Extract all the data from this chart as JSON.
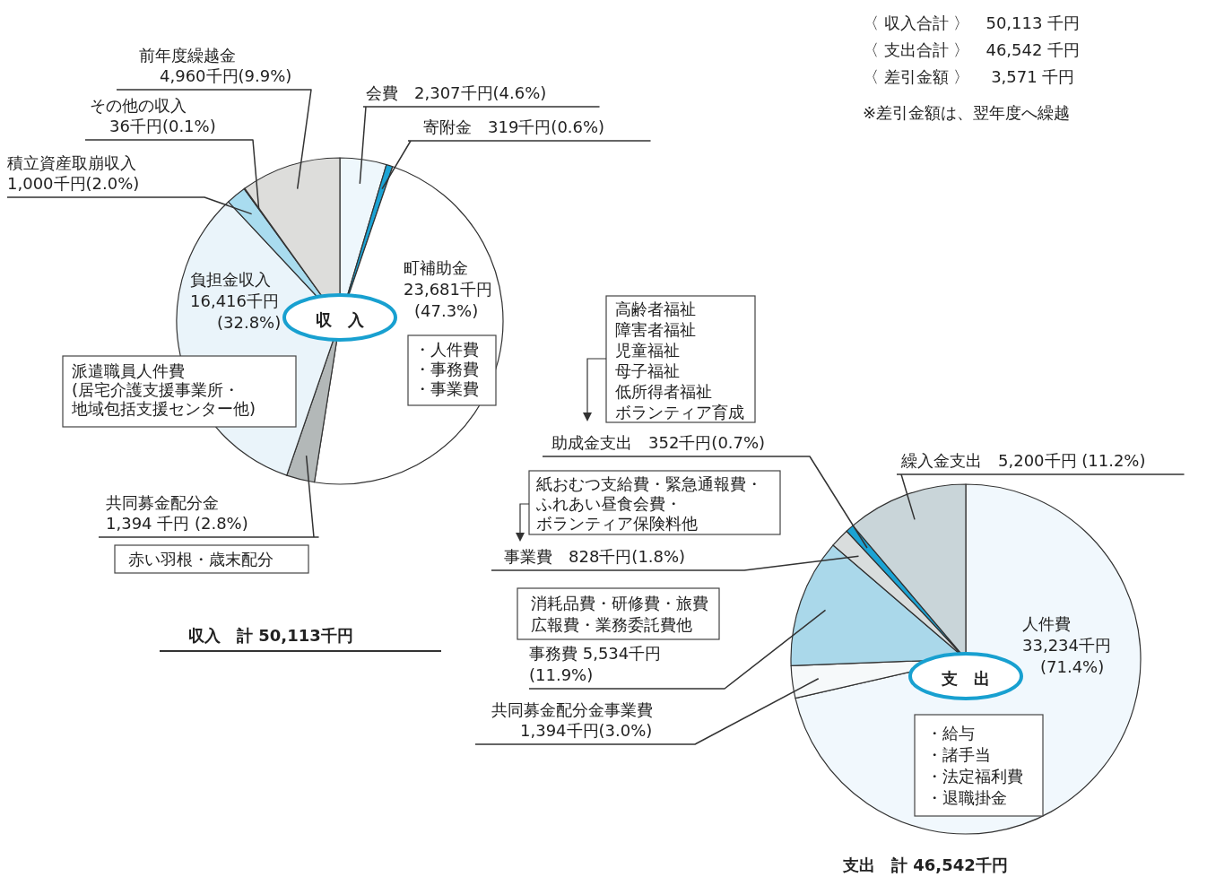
{
  "chart_data": [
    {
      "type": "pie",
      "title": "収　入",
      "categories": [
        "会費",
        "寄附金",
        "町補助金",
        "共同募金配分金",
        "負担金収入",
        "積立資産取崩収入",
        "その他の収入",
        "前年度繰越金"
      ],
      "values": [
        2307,
        319,
        23681,
        1394,
        16416,
        1000,
        36,
        4960
      ],
      "value_labels": [
        "2,307千円(4.6%)",
        "319千円(0.6%)",
        "23,681千円(47.3%)",
        "1,394 千円 (2.8%)",
        "16,416千円(32.8%)",
        "1,000千円(2.0%)",
        "36千円(0.1%)",
        "4,960千円(9.9%)"
      ],
      "colors": [
        "#eef7fc",
        "#1ba3d4",
        "#ffffff",
        "#b3b8b8",
        "#eaf4fa",
        "#a9dcef",
        "#cfe9f5",
        "#dddddb"
      ],
      "annotations": [
        "・人件費",
        "・事務費",
        "・事業費",
        "派遣職員人件費",
        "(居宅介護支援事業所・",
        "地域包括支援センター他)",
        "赤い羽根・歳末配分",
        "収入　計 50,113千円"
      ]
    },
    {
      "type": "other",
      "annotations": [
        "〈 収入合計 〉　50,113 千円",
        "〈 支出合計 〉　46,542 千円",
        "〈 差引金額 〉　 3,571 千円",
        "※差引金額は、翌年度へ繰越"
      ]
    },
    {
      "type": "pie",
      "title": "支　出",
      "categories": [
        "人件費",
        "共同募金配分金事業費",
        "事務費",
        "事業費",
        "助成金支出",
        "繰入金支出"
      ],
      "values": [
        33234,
        1394,
        5534,
        828,
        352,
        5200
      ],
      "value_labels": [
        "33,234千円(71.4%)",
        "1,394千円(3.0%)",
        "5,534千円(11.9%)",
        "828千円(1.8%)",
        "352千円(0.7%)",
        "5,200千円 (11.2%)"
      ],
      "colors": [
        "#f1f8fd",
        "#f6f9fa",
        "#aad8ea",
        "#d9dddd",
        "#1ba3d4",
        "#c9d5d9"
      ],
      "annotations": [
        "高齢者福祉",
        "障害者福祉",
        "児童福祉",
        "母子福祉",
        "低所得者福祉",
        "ボランティア育成",
        "紙おむつ支給費・緊急通報費・",
        "ふれあい昼食会費・",
        "ボランティア保険料他",
        "消耗品費・研修費・旅費",
        "広報費・業務委託費他",
        "・給与",
        "・諸手当",
        "・法定福利費",
        "・退職掛金",
        "支出　計 46,542千円"
      ]
    }
  ]
}
